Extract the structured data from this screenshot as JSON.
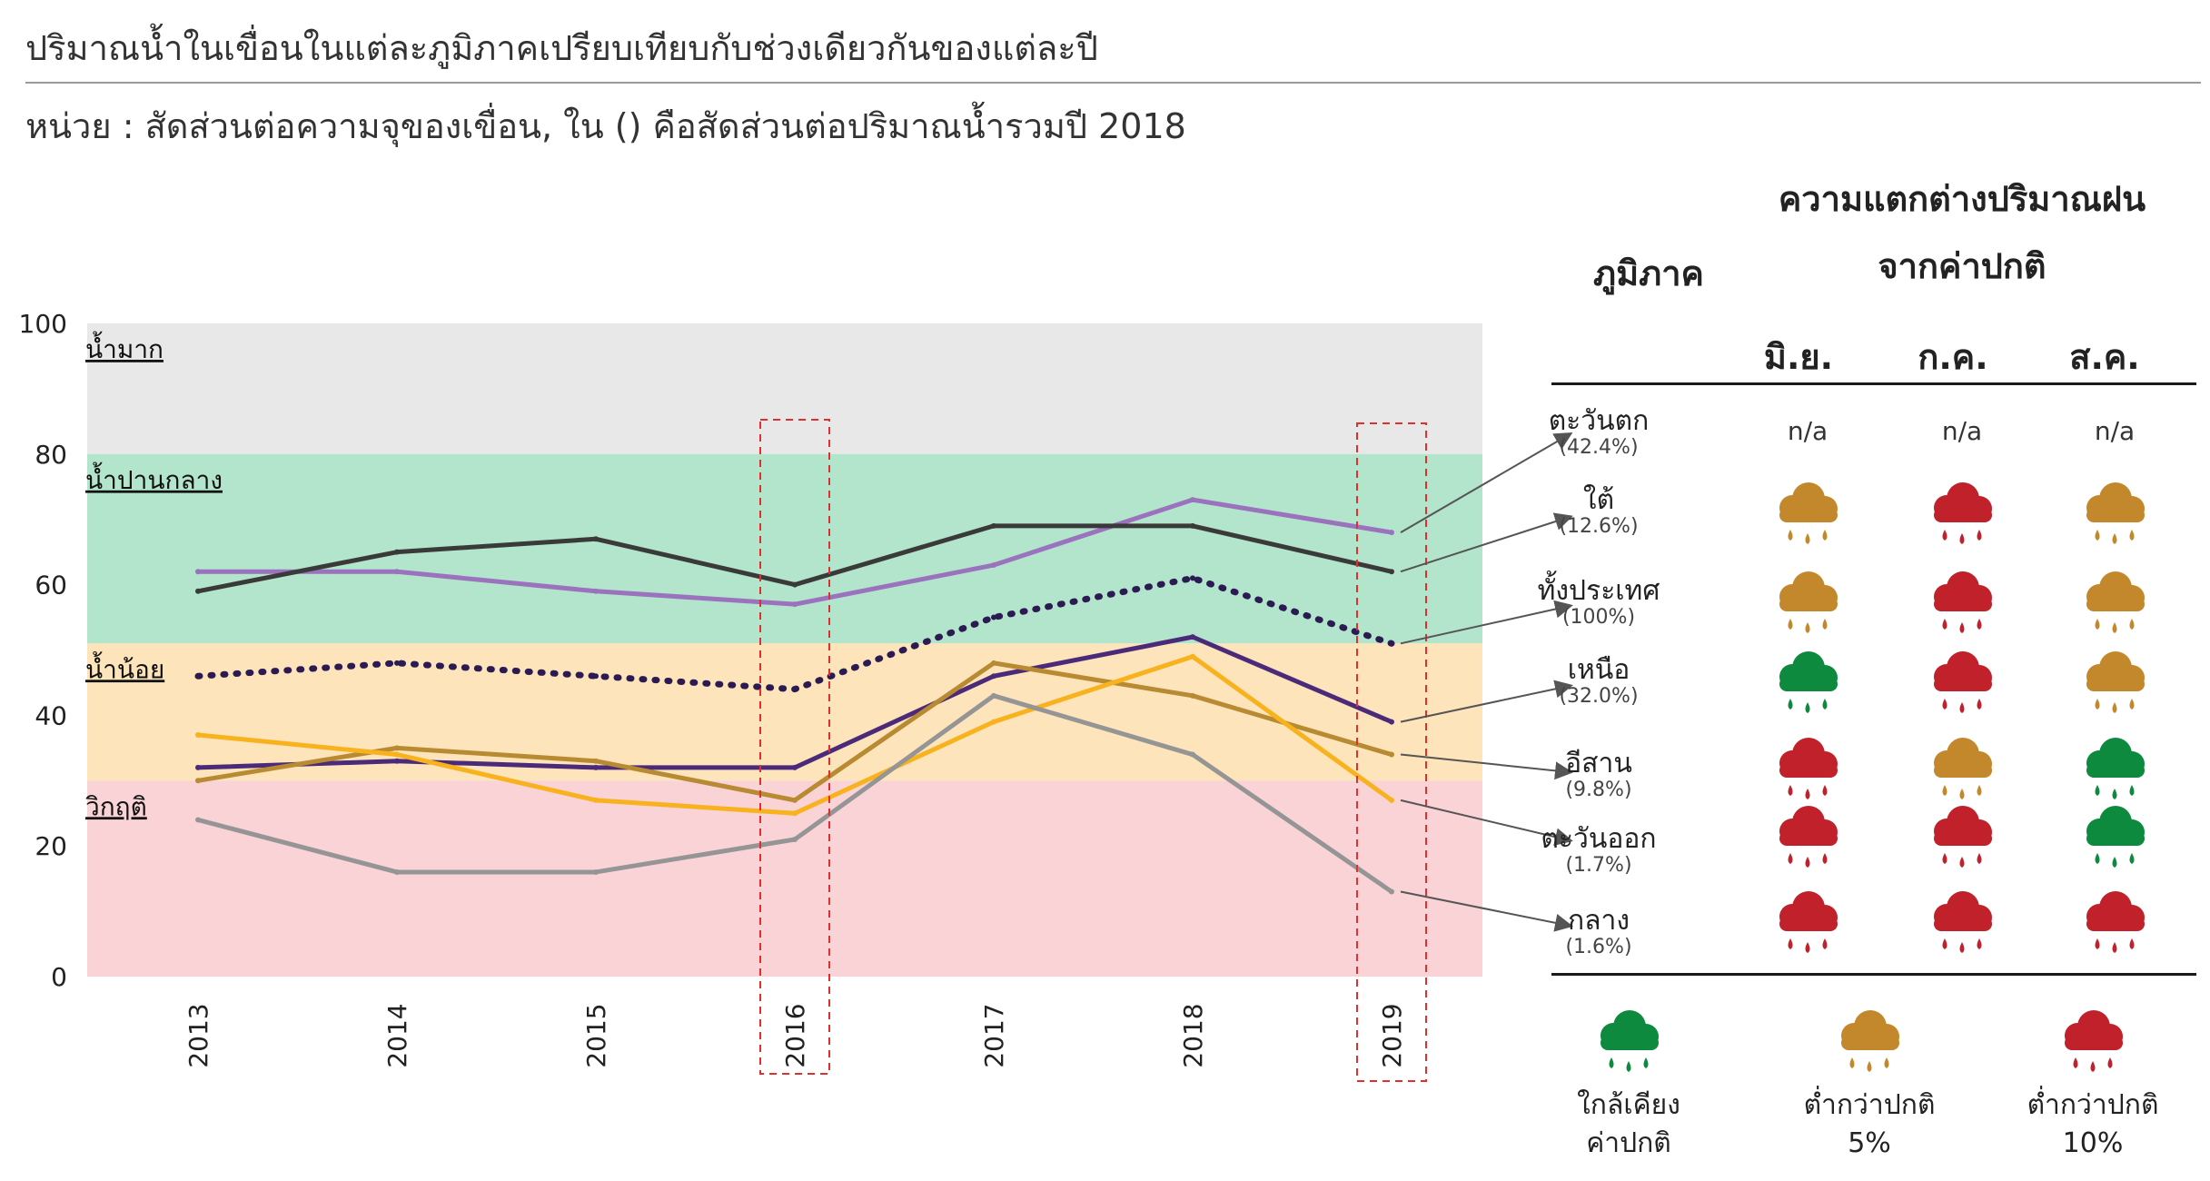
{
  "title": "ปริมาณน้ำในเขื่อนในแต่ละภูมิภาคเปรียบเทียบกับช่วงเดียวกันของแต่ละปี",
  "subtitle": "หน่วย : สัดส่วนต่อความจุของเขื่อน, ใน () คือสัดส่วนต่อปริมาณน้ำรวมปี 2018",
  "colors": {
    "cloud_near": "#0e8a3e",
    "cloud_low5": "#c4882c",
    "cloud_low10": "#c0212b",
    "zone_high": "#e8e8e8",
    "zone_mid": "#b3e4cc",
    "zone_low": "#fde4bb",
    "zone_crisis": "#f9d3d6",
    "highlight": "#e0302e"
  },
  "chart_data": {
    "type": "line",
    "categories": [
      "2013",
      "2014",
      "2015",
      "2016",
      "2017",
      "2018",
      "2019"
    ],
    "ylim": [
      0,
      100
    ],
    "yticks": [
      "0",
      "20",
      "40",
      "60",
      "80",
      "100"
    ],
    "zones": [
      {
        "name": "น้ำมาก",
        "from": 80,
        "to": 100,
        "color": "#e8e8e8"
      },
      {
        "name": "น้ำปานกลาง",
        "from": 51,
        "to": 80,
        "color": "#b3e4cc"
      },
      {
        "name": "น้ำน้อย",
        "from": 30,
        "to": 51,
        "color": "#fde4bb"
      },
      {
        "name": "วิกฤติ",
        "from": 0,
        "to": 30,
        "color": "#f9d3d6"
      }
    ],
    "highlight_years": [
      "2016",
      "2019"
    ],
    "series": [
      {
        "name": "ตะวันตก",
        "color": "#9b72bd",
        "style": "solid",
        "values": [
          62,
          62,
          59,
          57,
          63,
          73,
          68
        ]
      },
      {
        "name": "ใต้",
        "color": "#3a3a3a",
        "style": "solid",
        "values": [
          59,
          65,
          67,
          60,
          69,
          69,
          62
        ]
      },
      {
        "name": "ทั้งประเทศ",
        "color": "#2b1b52",
        "style": "dotted",
        "values": [
          46,
          48,
          46,
          44,
          55,
          61,
          51
        ]
      },
      {
        "name": "เหนือ",
        "color": "#4c2a7a",
        "style": "solid",
        "values": [
          32,
          33,
          32,
          32,
          46,
          52,
          39
        ]
      },
      {
        "name": "อีสาน",
        "color": "#b88a32",
        "style": "solid",
        "values": [
          30,
          35,
          33,
          27,
          48,
          43,
          34
        ]
      },
      {
        "name": "ตะวันออก",
        "color": "#f7b21e",
        "style": "solid",
        "values": [
          37,
          34,
          27,
          25,
          39,
          49,
          27
        ]
      },
      {
        "name": "กลาง",
        "color": "#959595",
        "style": "solid",
        "values": [
          24,
          16,
          16,
          21,
          43,
          34,
          13
        ]
      }
    ]
  },
  "table": {
    "header_region": "ภูมิภาค",
    "header_rain_line1": "ความแตกต่างปริมาณฝน",
    "header_rain_line2": "จากค่าปกติ",
    "months": [
      "มิ.ย.",
      "ก.ค.",
      "ส.ค."
    ],
    "rows": [
      {
        "region": "ตะวันตก",
        "share": "(42.4%)",
        "cells": [
          "na",
          "na",
          "na"
        ]
      },
      {
        "region": "ใต้",
        "share": "(12.6%)",
        "cells": [
          "low5",
          "low10",
          "low5"
        ]
      },
      {
        "region": "ทั้งประเทศ",
        "share": "(100%)",
        "cells": [
          "low5",
          "low10",
          "low5"
        ]
      },
      {
        "region": "เหนือ",
        "share": "(32.0%)",
        "cells": [
          "near",
          "low10",
          "low5"
        ]
      },
      {
        "region": "อีสาน",
        "share": "(9.8%)",
        "cells": [
          "low10",
          "low5",
          "near"
        ]
      },
      {
        "region": "ตะวันออก",
        "share": "(1.7%)",
        "cells": [
          "low10",
          "low10",
          "near"
        ]
      },
      {
        "region": "กลาง",
        "share": "(1.6%)",
        "cells": [
          "low10",
          "low10",
          "low10"
        ]
      }
    ],
    "na_text": "n/a"
  },
  "legend": [
    {
      "key": "near",
      "line1": "ใกล้เคียง",
      "line2": "ค่าปกติ",
      "icon": "rain-cloud-green-icon"
    },
    {
      "key": "low5",
      "line1": "ต่ำกว่าปกติ",
      "line2": "5%",
      "icon": "rain-cloud-gold-icon"
    },
    {
      "key": "low10",
      "line1": "ต่ำกว่าปกติ",
      "line2": "10%",
      "icon": "rain-cloud-red-icon"
    }
  ]
}
